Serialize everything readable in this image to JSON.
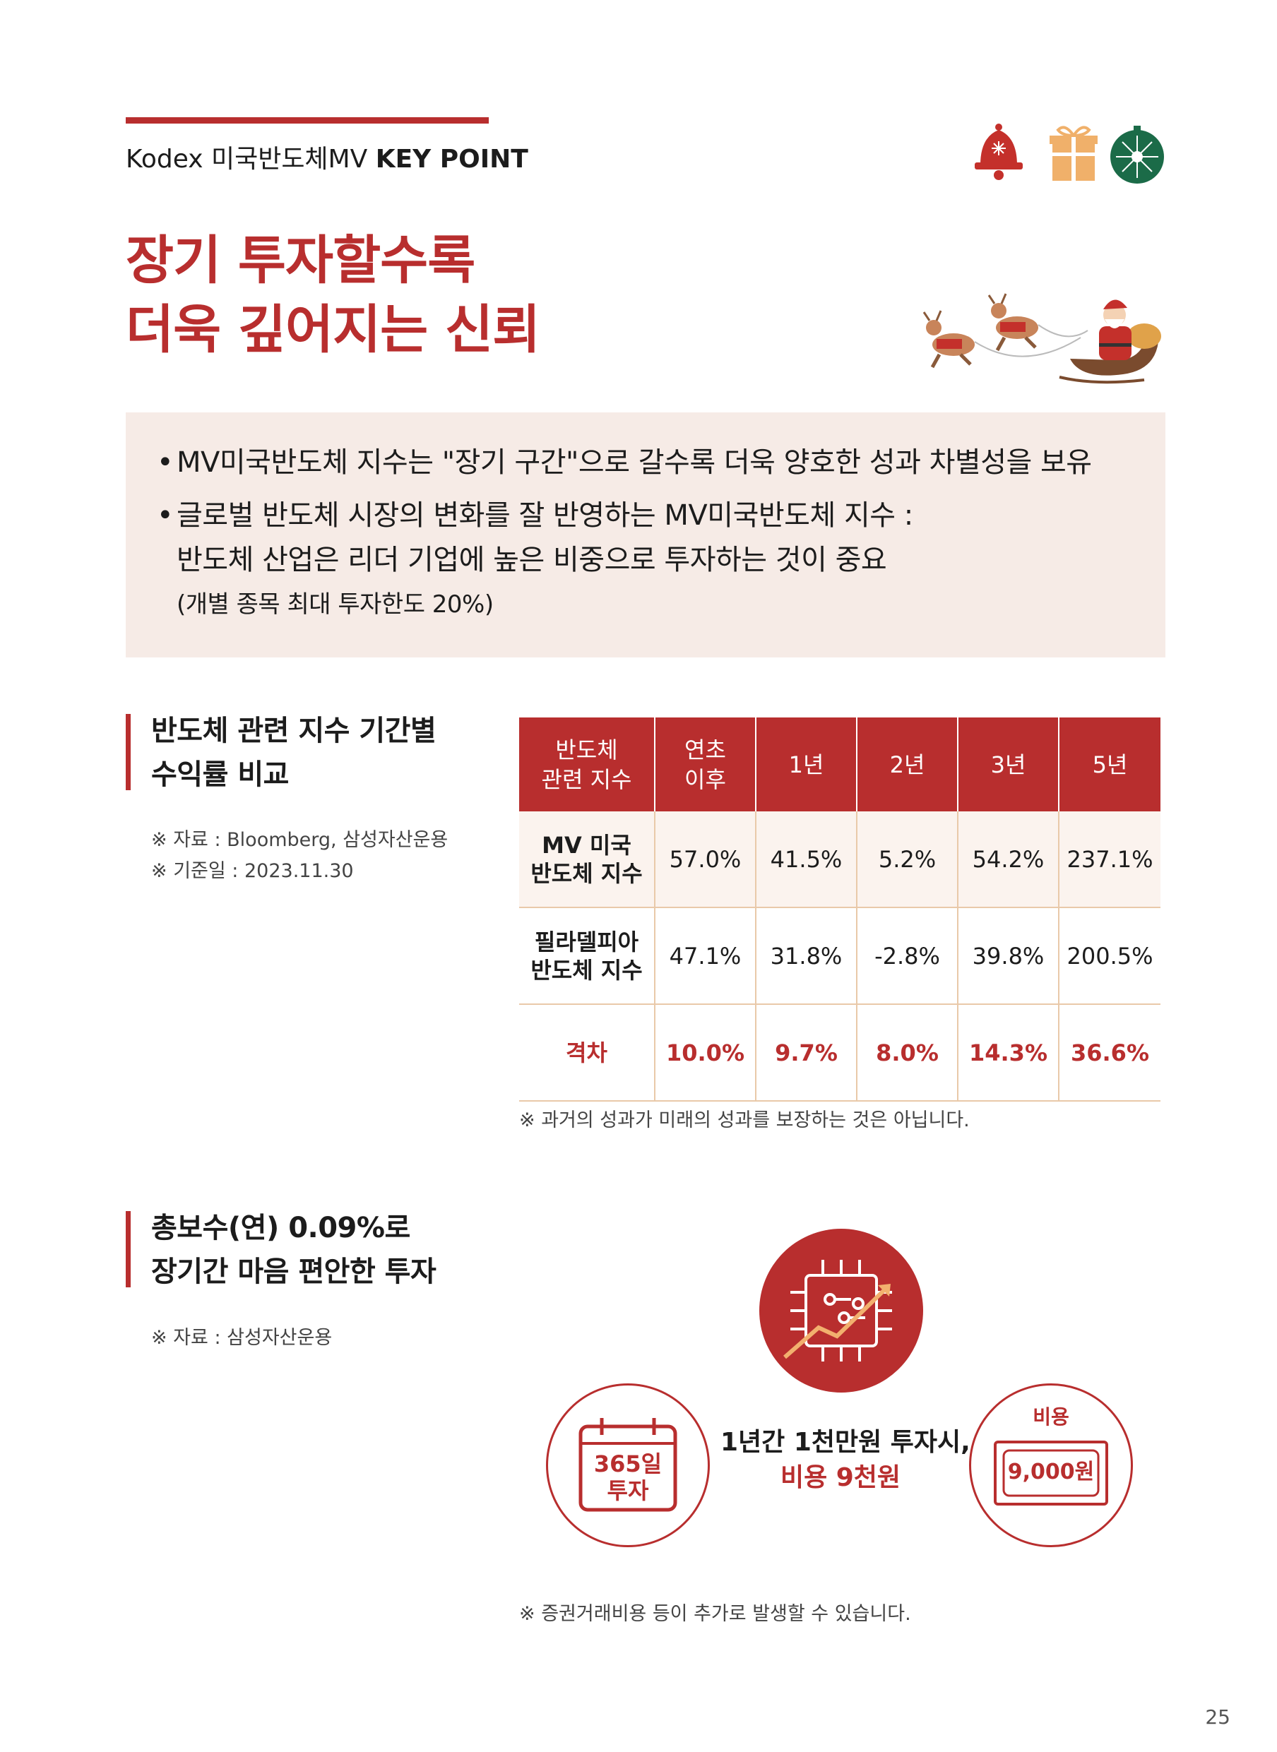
{
  "header": {
    "kicker_plain": "Kodex 미국반도체MV ",
    "kicker_bold": "KEY POINT",
    "title_line1": "장기 투자할수록",
    "title_line2": "더욱 깊어지는 신뢰"
  },
  "decor": {
    "icons": [
      "bell-icon",
      "gift-icon",
      "ornament-icon"
    ],
    "illustration": "santa-sleigh-reindeer-illustration",
    "accent_color": "#b82e2e"
  },
  "summary": {
    "bullet1": "MV미국반도체 지수는 \"장기 구간\"으로 갈수록 더욱 양호한 성과 차별성을 보유",
    "bullet2_line1": "글로벌 반도체 시장의 변화를 잘 반영하는 MV미국반도체 지수 :",
    "bullet2_line2": "반도체 산업은 리더 기업에 높은 비중으로 투자하는 것이 중요",
    "bullet2_line3": "(개별 종목 최대 투자한도 20%)"
  },
  "section1": {
    "title_line1": "반도체 관련 지수 기간별",
    "title_line2": "수익률 비교",
    "source": "※ 자료 : Bloomberg, 삼성자산운용",
    "basis": "※ 기준일 : 2023.11.30"
  },
  "table": {
    "headers": [
      [
        "반도체",
        "관련 지수"
      ],
      [
        "연초",
        "이후"
      ],
      [
        "1년"
      ],
      [
        "2년"
      ],
      [
        "3년"
      ],
      [
        "5년"
      ]
    ],
    "rows": [
      {
        "name": [
          "MV 미국",
          "반도체 지수"
        ],
        "values": [
          "57.0%",
          "41.5%",
          "5.2%",
          "54.2%",
          "237.1%"
        ]
      },
      {
        "name": [
          "필라델피아",
          "반도체 지수"
        ],
        "values": [
          "47.1%",
          "31.8%",
          "-2.8%",
          "39.8%",
          "200.5%"
        ]
      },
      {
        "name": [
          "격차"
        ],
        "values": [
          "10.0%",
          "9.7%",
          "8.0%",
          "14.3%",
          "36.6%"
        ]
      }
    ],
    "disclaimer": "※ 과거의 성과가 미래의 성과를 보장하는 것은 아닙니다."
  },
  "section2": {
    "title_line1": "총보수(연) 0.09%로",
    "title_line2": "장기간 마음 편안한 투자",
    "source": "※ 자료 : 삼성자산운용"
  },
  "infographic": {
    "chip_icon": "chip-growth-icon",
    "calendar_line1": "365일",
    "calendar_line2": "투자",
    "center_line1": "1년간 1천만원 투자시,",
    "center_line2": "비용 9천원",
    "cost_label": "비용",
    "cost_value": "9,000원",
    "disclaimer": "※ 증권거래비용 등이 추가로 발생할 수 있습니다."
  },
  "page_number": "25"
}
